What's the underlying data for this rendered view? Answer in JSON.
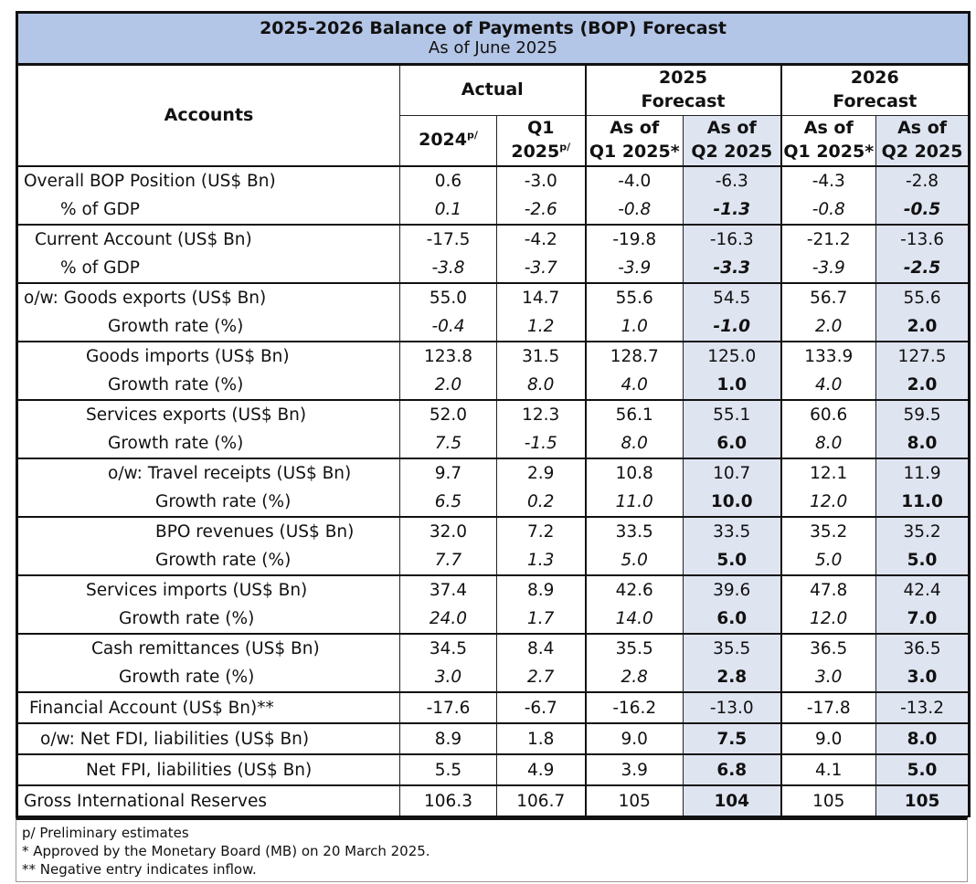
{
  "title": "2025-2026 Balance of Payments (BOP) Forecast",
  "subtitle": "As of June 2025",
  "headers": {
    "accounts": "Accounts",
    "actual": "Actual",
    "forecast_2025": [
      "2025",
      "Forecast"
    ],
    "forecast_2026": [
      "2026",
      "Forecast"
    ],
    "col_2024": "2024",
    "col_2024_sup": "p/",
    "col_q1_line1": "Q1",
    "col_q1_line2": "2025",
    "col_q1_sup": "p/",
    "asof_q1_line1": "As of",
    "asof_q1_line2": "Q1 2025*",
    "asof_q2_line1": "As of",
    "asof_q2_line2": "Q2 2025"
  },
  "groups": [
    {
      "main": {
        "label": "Overall BOP Position (US$ Bn)",
        "values": [
          "0.6",
          "-3.0",
          "-4.0",
          "-6.3",
          "-4.3",
          "-2.8"
        ]
      },
      "sub": {
        "label": "% of GDP",
        "values": [
          "0.1",
          "-2.6",
          "-0.8",
          "-1.3",
          "-0.8",
          "-0.5"
        ]
      }
    },
    {
      "main": {
        "label": "Current Account (US$ Bn)",
        "values": [
          "-17.5",
          "-4.2",
          "-19.8",
          "-16.3",
          "-21.2",
          "-13.6"
        ]
      },
      "sub": {
        "label": "% of GDP",
        "values": [
          "-3.8",
          "-3.7",
          "-3.9",
          "-3.3",
          "-3.9",
          "-2.5"
        ]
      }
    },
    {
      "main": {
        "label": "o/w: Goods exports (US$ Bn)",
        "values": [
          "55.0",
          "14.7",
          "55.6",
          "54.5",
          "56.7",
          "55.6"
        ]
      },
      "sub": {
        "label": "Growth rate (%)",
        "values": [
          "-0.4",
          "1.2",
          "1.0",
          "-1.0",
          "2.0",
          "2.0"
        ]
      }
    },
    {
      "main": {
        "label": "Goods imports (US$ Bn)",
        "values": [
          "123.8",
          "31.5",
          "128.7",
          "125.0",
          "133.9",
          "127.5"
        ]
      },
      "sub": {
        "label": "Growth rate (%)",
        "values": [
          "2.0",
          "8.0",
          "4.0",
          "1.0",
          "4.0",
          "2.0"
        ]
      }
    },
    {
      "main": {
        "label": "Services exports (US$ Bn)",
        "values": [
          "52.0",
          "12.3",
          "56.1",
          "55.1",
          "60.6",
          "59.5"
        ]
      },
      "sub": {
        "label": "Growth rate (%)",
        "values": [
          "7.5",
          "-1.5",
          "8.0",
          "6.0",
          "8.0",
          "8.0"
        ]
      }
    },
    {
      "main": {
        "label": "o/w: Travel receipts (US$ Bn)",
        "values": [
          "9.7",
          "2.9",
          "10.8",
          "10.7",
          "12.1",
          "11.9"
        ]
      },
      "sub": {
        "label": "Growth rate (%)",
        "values": [
          "6.5",
          "0.2",
          "11.0",
          "10.0",
          "12.0",
          "11.0"
        ]
      }
    },
    {
      "main": {
        "label": "BPO revenues (US$ Bn)",
        "values": [
          "32.0",
          "7.2",
          "33.5",
          "33.5",
          "35.2",
          "35.2"
        ]
      },
      "sub": {
        "label": "Growth rate (%)",
        "values": [
          "7.7",
          "1.3",
          "5.0",
          "5.0",
          "5.0",
          "5.0"
        ]
      }
    },
    {
      "main": {
        "label": "Services imports (US$ Bn)",
        "values": [
          "37.4",
          "8.9",
          "42.6",
          "39.6",
          "47.8",
          "42.4"
        ]
      },
      "sub": {
        "label": "Growth rate (%)",
        "values": [
          "24.0",
          "1.7",
          "14.0",
          "6.0",
          "12.0",
          "7.0"
        ]
      }
    },
    {
      "main": {
        "label": "Cash remittances (US$ Bn)",
        "values": [
          "34.5",
          "8.4",
          "35.5",
          "35.5",
          "36.5",
          "36.5"
        ]
      },
      "sub": {
        "label": "Growth rate (%)",
        "values": [
          "3.0",
          "2.7",
          "2.8",
          "2.8",
          "3.0",
          "3.0"
        ]
      }
    }
  ],
  "singles": [
    {
      "label": "Financial Account (US$ Bn)**",
      "values": [
        "-17.6",
        "-6.7",
        "-16.2",
        "-13.0",
        "-17.8",
        "-13.2"
      ]
    },
    {
      "label": "o/w: Net FDI, liabilities (US$ Bn)",
      "values": [
        "8.9",
        "1.8",
        "9.0",
        "7.5",
        "9.0",
        "8.0"
      ]
    },
    {
      "label": "Net FPI, liabilities (US$ Bn)",
      "values": [
        "5.5",
        "4.9",
        "3.9",
        "6.8",
        "4.1",
        "5.0"
      ]
    },
    {
      "label": "Gross International Reserves",
      "values": [
        "106.3",
        "106.7",
        "105",
        "104",
        "105",
        "105"
      ]
    }
  ],
  "notes": [
    "p/ Preliminary estimates",
    "* Approved by the Monetary Board (MB) on 20 March 2025.",
    "** Negative entry indicates inflow."
  ]
}
